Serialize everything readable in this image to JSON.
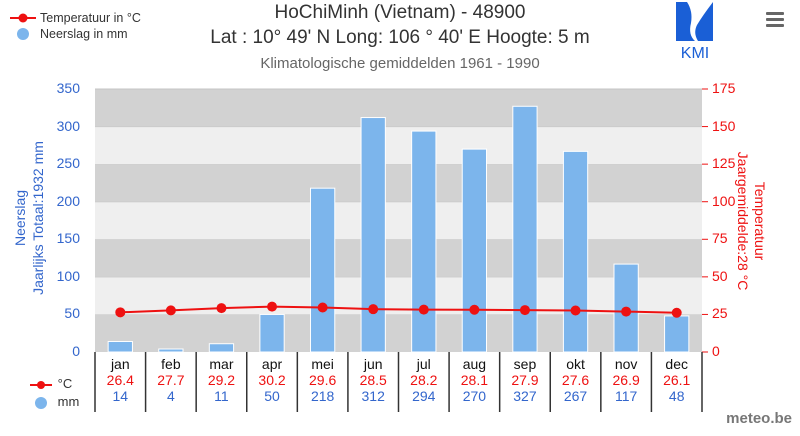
{
  "header": {
    "title_line1": "HoChiMinh (Vietnam) - 48900",
    "title_line2": "Lat : 10° 49' N Long: 106 ° 40' E Hoogte: 5 m",
    "subtitle": "Klimatologische gemiddelden 1961 - 1990",
    "logo_text": "KMI",
    "menu_icon": "hamburger-menu-icon"
  },
  "legend": {
    "temperature_label": "Temperatuur in °C",
    "precipitation_label": "Neerslag in mm",
    "temperature_color": "#ee1111",
    "precipitation_color": "#7cb5ec"
  },
  "axes": {
    "left_title_line1": "Neerslag",
    "left_title_line2": "Jaarlijks Totaal:1932 mm",
    "right_title_line1": "Temperatuur",
    "right_title_line2": "Jaargemiddelde:28 °C",
    "left_ticks": [
      "0",
      "50",
      "100",
      "150",
      "200",
      "250",
      "300",
      "350"
    ],
    "right_ticks": [
      "0",
      "25",
      "50",
      "75",
      "100",
      "125",
      "150",
      "175"
    ]
  },
  "table": {
    "temp_unit": "°C",
    "precip_unit": "mm"
  },
  "footer": {
    "credit": "meteo.be"
  },
  "chart_data": {
    "type": "bar+line",
    "title": "HoChiMinh (Vietnam) - 48900",
    "subtitle": "Klimatologische gemiddelden 1961 - 1990",
    "categories": [
      "jan",
      "feb",
      "mar",
      "apr",
      "mei",
      "jun",
      "jul",
      "aug",
      "sep",
      "okt",
      "nov",
      "dec"
    ],
    "series": [
      {
        "name": "Neerslag in mm",
        "type": "bar",
        "axis": "left",
        "color": "#7cb5ec",
        "values": [
          14,
          4,
          11,
          50,
          218,
          312,
          294,
          270,
          327,
          267,
          117,
          48
        ]
      },
      {
        "name": "Temperatuur in °C",
        "type": "line",
        "axis": "right",
        "color": "#ee1111",
        "values": [
          26.4,
          27.7,
          29.2,
          30.2,
          29.6,
          28.5,
          28.2,
          28.1,
          27.9,
          27.6,
          26.9,
          26.1
        ]
      }
    ],
    "ylabel_left": "Neerslag / Jaarlijks Totaal:1932 mm",
    "ylabel_right": "Temperatuur / Jaargemiddelde:28 °C",
    "ylim_left": [
      0,
      350
    ],
    "ylim_right": [
      0,
      175
    ],
    "grid": "alternating bands",
    "legend_position": "top-left"
  }
}
